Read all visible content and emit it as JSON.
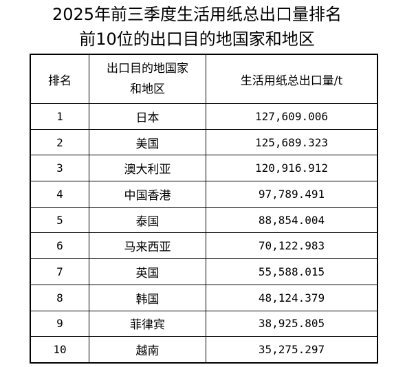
{
  "title": {
    "lines": [
      "2025年前三季度生活用纸总出口量排名",
      "前10位的出口目的地国家和地区"
    ]
  },
  "table": {
    "header": [
      "排名",
      "出口目的地国家和地区",
      "生活用纸总出口量/t"
    ],
    "rows": [
      [
        "1",
        "日本",
        "127,609.006"
      ],
      [
        "2",
        "美国",
        "125,689.323"
      ],
      [
        "3",
        "澳大利亚",
        "120,916.912"
      ],
      [
        "4",
        "中国香港",
        "97,789.491"
      ],
      [
        "5",
        "泰国",
        "88,854.004"
      ],
      [
        "6",
        "马来西亚",
        "70,122.983"
      ],
      [
        "7",
        "英国",
        "55,588.015"
      ],
      [
        "8",
        "韩国",
        "48,124.379"
      ],
      [
        "9",
        "菲律宾",
        "38,925.805"
      ],
      [
        "10",
        "越南",
        "35,275.297"
      ]
    ]
  }
}
